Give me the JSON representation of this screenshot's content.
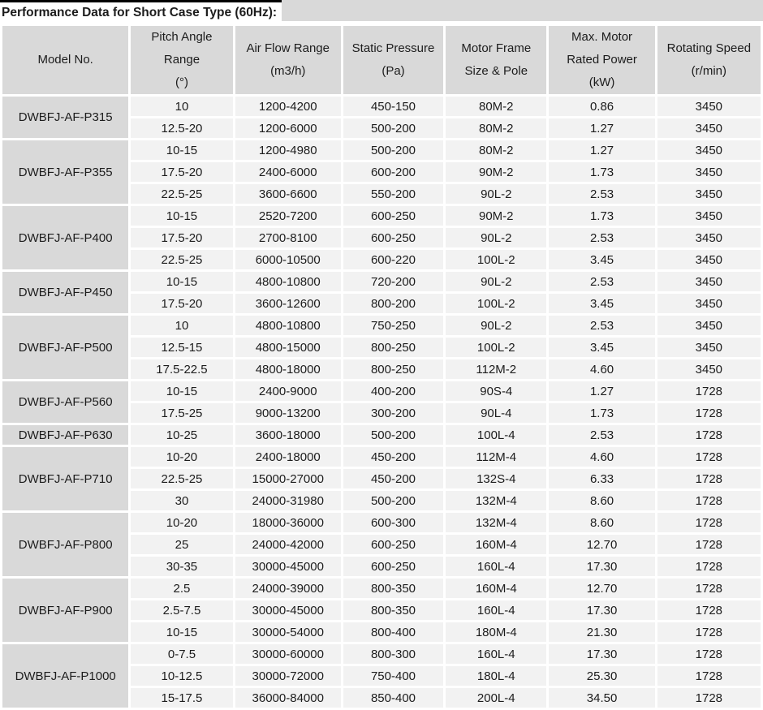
{
  "title": "Performance Data for Short Case Type (60Hz):",
  "colors": {
    "header_bg": "#d9d9d9",
    "cell_bg": "#f2f2f2",
    "gap": "#ffffff",
    "text": "#1c1c1c",
    "title_border": "#000000"
  },
  "table": {
    "headers": [
      [
        "Model No."
      ],
      [
        "Pitch Angle",
        "Range",
        "(°)"
      ],
      [
        "Air Flow Range",
        "(m3/h)"
      ],
      [
        "Static Pressure",
        "(Pa)"
      ],
      [
        "Motor Frame",
        "Size & Pole"
      ],
      [
        "Max. Motor",
        "Rated Power",
        "(kW)"
      ],
      [
        "Rotating Speed",
        "(r/min)"
      ]
    ],
    "groups": [
      {
        "model": "DWBFJ-AF-P315",
        "rows": [
          [
            "10",
            "1200-4200",
            "450-150",
            "80M-2",
            "0.86",
            "3450"
          ],
          [
            "12.5-20",
            "1200-6000",
            "500-200",
            "80M-2",
            "1.27",
            "3450"
          ]
        ]
      },
      {
        "model": "DWBFJ-AF-P355",
        "rows": [
          [
            "10-15",
            "1200-4980",
            "500-200",
            "80M-2",
            "1.27",
            "3450"
          ],
          [
            "17.5-20",
            "2400-6000",
            "600-200",
            "90M-2",
            "1.73",
            "3450"
          ],
          [
            "22.5-25",
            "3600-6600",
            "550-200",
            "90L-2",
            "2.53",
            "3450"
          ]
        ]
      },
      {
        "model": "DWBFJ-AF-P400",
        "rows": [
          [
            "10-15",
            "2520-7200",
            "600-250",
            "90M-2",
            "1.73",
            "3450"
          ],
          [
            "17.5-20",
            "2700-8100",
            "600-250",
            "90L-2",
            "2.53",
            "3450"
          ],
          [
            "22.5-25",
            "6000-10500",
            "600-220",
            "100L-2",
            "3.45",
            "3450"
          ]
        ]
      },
      {
        "model": "DWBFJ-AF-P450",
        "rows": [
          [
            "10-15",
            "4800-10800",
            "720-200",
            "90L-2",
            "2.53",
            "3450"
          ],
          [
            "17.5-20",
            "3600-12600",
            "800-200",
            "100L-2",
            "3.45",
            "3450"
          ]
        ]
      },
      {
        "model": "DWBFJ-AF-P500",
        "rows": [
          [
            "10",
            "4800-10800",
            "750-250",
            "90L-2",
            "2.53",
            "3450"
          ],
          [
            "12.5-15",
            "4800-15000",
            "800-250",
            "100L-2",
            "3.45",
            "3450"
          ],
          [
            "17.5-22.5",
            "4800-18000",
            "800-250",
            "112M-2",
            "4.60",
            "3450"
          ]
        ]
      },
      {
        "model": "DWBFJ-AF-P560",
        "rows": [
          [
            "10-15",
            "2400-9000",
            "400-200",
            "90S-4",
            "1.27",
            "1728"
          ],
          [
            "17.5-25",
            "9000-13200",
            "300-200",
            "90L-4",
            "1.73",
            "1728"
          ]
        ]
      },
      {
        "model": "DWBFJ-AF-P630",
        "rows": [
          [
            "10-25",
            "3600-18000",
            "500-200",
            "100L-4",
            "2.53",
            "1728"
          ]
        ]
      },
      {
        "model": "DWBFJ-AF-P710",
        "rows": [
          [
            "10-20",
            "2400-18000",
            "450-200",
            "112M-4",
            "4.60",
            "1728"
          ],
          [
            "22.5-25",
            "15000-27000",
            "450-200",
            "132S-4",
            "6.33",
            "1728"
          ],
          [
            "30",
            "24000-31980",
            "500-200",
            "132M-4",
            "8.60",
            "1728"
          ]
        ]
      },
      {
        "model": "DWBFJ-AF-P800",
        "rows": [
          [
            "10-20",
            "18000-36000",
            "600-300",
            "132M-4",
            "8.60",
            "1728"
          ],
          [
            "25",
            "24000-42000",
            "600-250",
            "160M-4",
            "12.70",
            "1728"
          ],
          [
            "30-35",
            "30000-45000",
            "600-250",
            "160L-4",
            "17.30",
            "1728"
          ]
        ]
      },
      {
        "model": "DWBFJ-AF-P900",
        "rows": [
          [
            "2.5",
            "24000-39000",
            "800-350",
            "160M-4",
            "12.70",
            "1728"
          ],
          [
            "2.5-7.5",
            "30000-45000",
            "800-350",
            "160L-4",
            "17.30",
            "1728"
          ],
          [
            "10-15",
            "30000-54000",
            "800-400",
            "180M-4",
            "21.30",
            "1728"
          ]
        ]
      },
      {
        "model": "DWBFJ-AF-P1000",
        "rows": [
          [
            "0-7.5",
            "30000-60000",
            "800-300",
            "160L-4",
            "17.30",
            "1728"
          ],
          [
            "10-12.5",
            "30000-72000",
            "750-400",
            "180L-4",
            "25.30",
            "1728"
          ],
          [
            "15-17.5",
            "36000-84000",
            "850-400",
            "200L-4",
            "34.50",
            "1728"
          ]
        ]
      }
    ]
  }
}
